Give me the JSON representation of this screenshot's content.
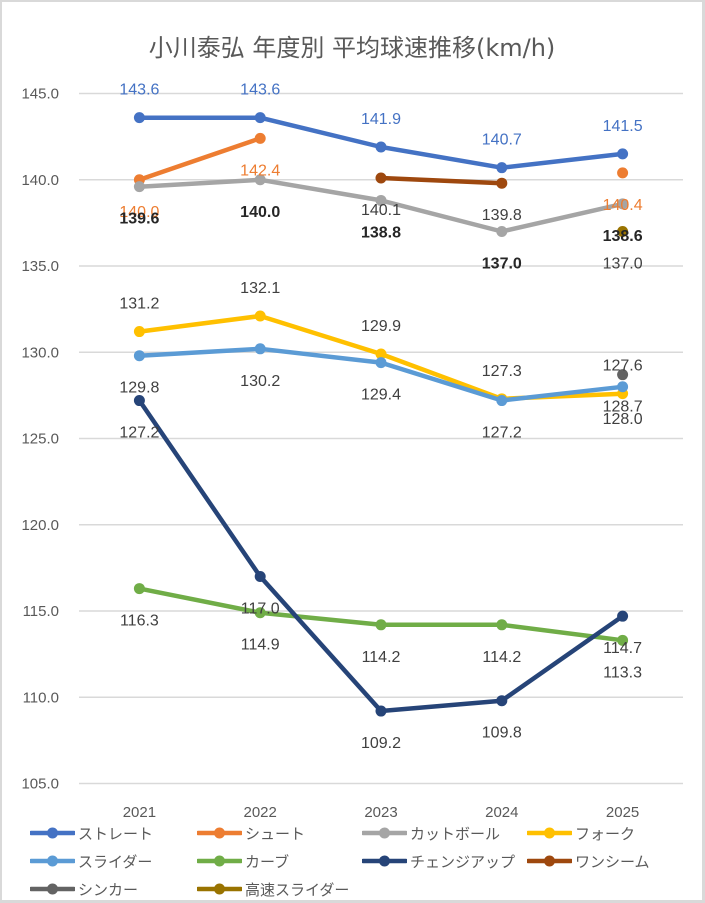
{
  "chart_data": {
    "type": "line",
    "title": "小川泰弘 年度別 平均球速推移(km/h)",
    "xlabel": "",
    "ylabel": "",
    "categories": [
      "2021",
      "2022",
      "2023",
      "2024",
      "2025"
    ],
    "ylim": [
      105,
      145
    ],
    "yticks": [
      "105.0",
      "110.0",
      "115.0",
      "120.0",
      "125.0",
      "130.0",
      "135.0",
      "140.0",
      "145.0"
    ],
    "grid": true,
    "legend_position": "bottom",
    "series": [
      {
        "name": "ストレート",
        "color": "#4472C4",
        "label_color": "#4472C4",
        "label_position": "above",
        "values": [
          143.6,
          143.6,
          141.9,
          140.7,
          141.5
        ],
        "labels": [
          "143.6",
          "143.6",
          "141.9",
          "140.7",
          "141.5"
        ]
      },
      {
        "name": "シュート",
        "color": "#ED7D31",
        "label_color": "#ED7D31",
        "label_position": "below",
        "values": [
          140.0,
          142.4,
          null,
          null,
          140.4
        ],
        "labels": [
          "140.0",
          "142.4",
          null,
          null,
          "140.4"
        ]
      },
      {
        "name": "カットボール",
        "color": "#A5A5A5",
        "label_color": "#262626",
        "label_position": "below",
        "values": [
          139.6,
          140.0,
          138.8,
          137.0,
          138.6
        ],
        "labels": [
          "139.6",
          "140.0",
          "138.8",
          "137.0",
          "138.6"
        ]
      },
      {
        "name": "フォーク",
        "color": "#FFC000",
        "label_color": "#404040",
        "label_position": "above",
        "values": [
          131.2,
          132.1,
          129.9,
          127.3,
          127.6
        ],
        "labels": [
          "131.2",
          "132.1",
          "129.9",
          "127.3",
          "127.6"
        ]
      },
      {
        "name": "スライダー",
        "color": "#5B9BD5",
        "label_color": "#404040",
        "label_position": "below",
        "values": [
          129.8,
          130.2,
          129.4,
          127.2,
          128.0
        ],
        "labels": [
          "129.8",
          "130.2",
          "129.4",
          "127.2",
          "128.0"
        ]
      },
      {
        "name": "カーブ",
        "color": "#70AD47",
        "label_color": "#404040",
        "label_position": "below",
        "values": [
          116.3,
          114.9,
          114.2,
          114.2,
          113.3
        ],
        "labels": [
          "116.3",
          "114.9",
          "114.2",
          "114.2",
          "113.3"
        ]
      },
      {
        "name": "チェンジアップ",
        "color": "#264478",
        "label_color": "#404040",
        "label_position": "below",
        "values": [
          127.2,
          117.0,
          109.2,
          109.8,
          114.7
        ],
        "labels": [
          "127.2",
          "117.0",
          "109.2",
          "109.8",
          "114.7"
        ]
      },
      {
        "name": "ワンシーム",
        "color": "#9E480E",
        "label_color": "#404040",
        "label_position": "below",
        "values": [
          null,
          null,
          140.1,
          139.8,
          null
        ],
        "labels": [
          null,
          null,
          "140.1",
          "139.8",
          null
        ]
      },
      {
        "name": "シンカー",
        "color": "#636363",
        "label_color": "#404040",
        "label_position": "below",
        "values": [
          null,
          null,
          null,
          null,
          128.7
        ],
        "labels": [
          null,
          null,
          null,
          null,
          "128.7"
        ]
      },
      {
        "name": "高速スライダー",
        "color": "#997300",
        "label_color": "#404040",
        "label_position": "below",
        "values": [
          null,
          null,
          null,
          null,
          137.0
        ],
        "labels": [
          null,
          null,
          null,
          null,
          "137.0"
        ]
      }
    ]
  }
}
